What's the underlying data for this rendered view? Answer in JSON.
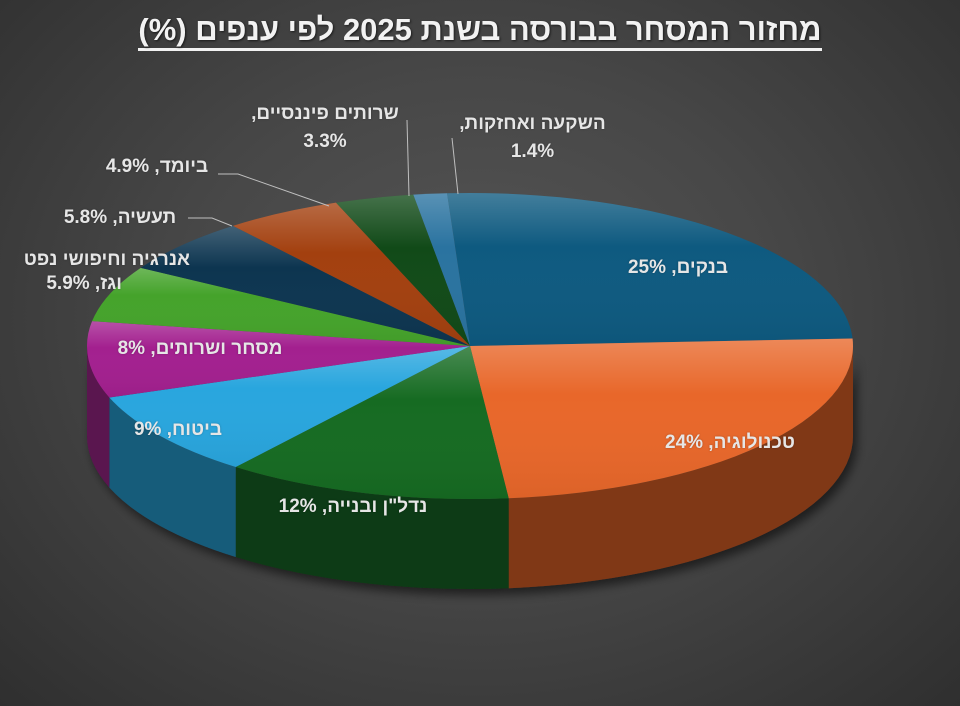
{
  "chart_data": {
    "type": "pie",
    "variant": "3d",
    "title": "מחזור המסחר בבורסה בשנת 2025 לפי ענפים (%)",
    "unit": "%",
    "categories": [
      "בנקים",
      "טכנולוגיה",
      "נדל\"ן ובנייה",
      "ביטוח",
      "מסחר ושרותים",
      "אנרגיה וחיפושי נפט וגז",
      "תעשיה",
      "ביומד",
      "שרותים פיננסיים",
      "השקעה ואחזקות"
    ],
    "values": [
      25,
      24,
      12,
      9,
      8,
      5.9,
      5.8,
      4.9,
      3.3,
      1.4
    ],
    "data_labels": [
      "בנקים, 25%",
      "טכנולוגיה, 24%",
      "נדל\"ן ובנייה, 12%",
      "ביטוח, 9%",
      "מסחר ושרותים, 8%",
      "אנרגיה וחיפושי נפט וגז, 5.9%",
      "תעשיה, 5.8%",
      "ביומד, 4.9%",
      "שרותים פיננסיים, 3.3%",
      "השקעה ואחזקות, 1.4%"
    ],
    "colors": [
      "#0e5a80",
      "#e8672a",
      "#166b22",
      "#29a6de",
      "#a3208f",
      "#45a32b",
      "#0d3550",
      "#a3400f",
      "#114a18",
      "#2a73a0"
    ],
    "legend": "none",
    "grid": false
  },
  "labels": {
    "banks": {
      "name": "בנקים",
      "value": "25%"
    },
    "tech": {
      "name": "טכנולוגיה",
      "value": "24%"
    },
    "realestate": {
      "name": "נדל\"ן ובנייה",
      "value": "12%"
    },
    "insurance": {
      "name": "ביטוח",
      "value": "9%"
    },
    "trade": {
      "name": "מסחר ושרותים",
      "value": "8%"
    },
    "energy": {
      "line1": "אנרגיה וחיפושי נפט",
      "line2": "וגז, 5.9%"
    },
    "industry": {
      "name": "תעשיה",
      "value": "5.8%"
    },
    "biomed": {
      "name": "ביומד",
      "value": "4.9%"
    },
    "finserv": {
      "line1": "שרותים פיננסיים,",
      "line2": "3.3%"
    },
    "invest": {
      "line1": "השקעה ואחזקות,",
      "line2": "1.4%"
    }
  }
}
